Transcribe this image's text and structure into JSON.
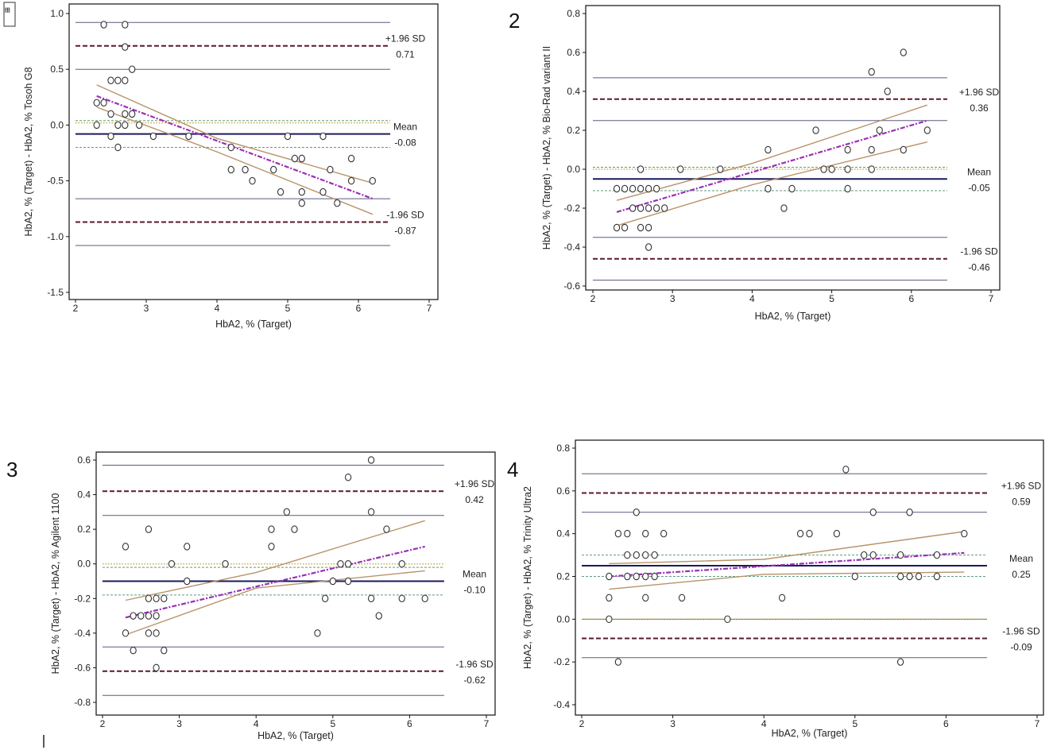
{
  "figure": {
    "corner_glyph": "⊞",
    "stray_mark": "|"
  },
  "colors": {
    "mean_line": "#1a1a5e",
    "limit_dash": "#5a1a2a",
    "ci_line": "#5a5a80",
    "regression": "#b8936a",
    "regression_fit": "#9b2fb5",
    "equality_dot": "#c9b24a",
    "mean_ci_dash": "#5f9a80",
    "marker_stroke": "#333333"
  },
  "chart_data": [
    {
      "type": "scatter",
      "panel_label": "",
      "ylabel": "HbA2, % (Target) - HbA2, % Tosoh G8",
      "xlabel": "HbA2, % (Target)",
      "xlim": [
        2,
        7
      ],
      "ylim": [
        -1.5,
        1.0
      ],
      "xticks": [
        2,
        3,
        4,
        5,
        6,
        7
      ],
      "xtick_labels": [
        "2",
        "3",
        "4",
        "5",
        "6",
        "7"
      ],
      "yticks": [
        -1.5,
        -1.0,
        -0.5,
        0.0,
        0.5,
        1.0
      ],
      "ytick_labels": [
        "-1.5",
        "-1.0",
        "-0.5",
        "0.0",
        "0.5",
        "1.0"
      ],
      "x_end": 6.45,
      "mean": -0.08,
      "upper_loa": 0.71,
      "lower_loa": -0.87,
      "upper_loa_ci": [
        0.5,
        0.92
      ],
      "lower_loa_ci": [
        -0.66,
        -1.08
      ],
      "mean_ci": [
        0.04,
        -0.2
      ],
      "equality_line": 0.02,
      "labels": {
        "upper": "+1.96 SD",
        "upper_value": "0.71",
        "mean": "Mean",
        "mean_value": "-0.08",
        "lower": "-1.96 SD",
        "lower_value": "-0.87"
      },
      "regression": {
        "x": [
          2.3,
          6.2
        ],
        "y": [
          0.26,
          -0.66
        ]
      },
      "regression_ci_upper": [
        [
          2.3,
          0.36
        ],
        [
          4.0,
          -0.12
        ],
        [
          6.2,
          -0.52
        ]
      ],
      "regression_ci_lower": [
        [
          2.3,
          0.16
        ],
        [
          4.0,
          -0.24
        ],
        [
          6.2,
          -0.8
        ]
      ],
      "points": [
        [
          2.4,
          0.9
        ],
        [
          2.7,
          0.9
        ],
        [
          2.7,
          0.7
        ],
        [
          2.8,
          0.5
        ],
        [
          2.5,
          0.4
        ],
        [
          2.6,
          0.4
        ],
        [
          2.7,
          0.4
        ],
        [
          2.3,
          0.2
        ],
        [
          2.4,
          0.2
        ],
        [
          2.5,
          0.1
        ],
        [
          2.7,
          0.1
        ],
        [
          2.8,
          0.1
        ],
        [
          2.3,
          0.0
        ],
        [
          2.6,
          0.0
        ],
        [
          2.7,
          0.0
        ],
        [
          2.9,
          0.0
        ],
        [
          2.6,
          -0.2
        ],
        [
          2.5,
          -0.1
        ],
        [
          3.1,
          -0.1
        ],
        [
          3.6,
          -0.1
        ],
        [
          4.2,
          -0.2
        ],
        [
          4.2,
          -0.4
        ],
        [
          4.4,
          -0.4
        ],
        [
          4.5,
          -0.5
        ],
        [
          4.8,
          -0.4
        ],
        [
          4.9,
          -0.6
        ],
        [
          5.0,
          -0.1
        ],
        [
          5.1,
          -0.3
        ],
        [
          5.2,
          -0.3
        ],
        [
          5.2,
          -0.6
        ],
        [
          5.2,
          -0.7
        ],
        [
          5.5,
          -0.1
        ],
        [
          5.5,
          -0.6
        ],
        [
          5.6,
          -0.4
        ],
        [
          5.7,
          -0.7
        ],
        [
          5.9,
          -0.3
        ],
        [
          5.9,
          -0.5
        ],
        [
          6.2,
          -0.5
        ]
      ]
    },
    {
      "type": "scatter",
      "panel_label": "2",
      "ylabel": "HbA2, % (Target) - HbA2, % Bio-Rad variant II",
      "xlabel": "HbA2, % (Target)",
      "xlim": [
        2,
        7
      ],
      "ylim": [
        -0.6,
        0.8
      ],
      "xticks": [
        2,
        3,
        4,
        5,
        6,
        7
      ],
      "xtick_labels": [
        "2",
        "3",
        "4",
        "5",
        "6",
        "7"
      ],
      "yticks": [
        -0.6,
        -0.4,
        -0.2,
        0.0,
        0.2,
        0.4,
        0.6,
        0.8
      ],
      "ytick_labels": [
        "-0.6",
        "-0.4",
        "-0.2",
        "0.0",
        "0.2",
        "0.4",
        "0.6",
        "0.8"
      ],
      "x_end": 6.45,
      "mean": -0.05,
      "upper_loa": 0.36,
      "lower_loa": -0.46,
      "upper_loa_ci": [
        0.25,
        0.47
      ],
      "lower_loa_ci": [
        -0.35,
        -0.57
      ],
      "mean_ci": [
        0.01,
        -0.11
      ],
      "equality_line": 0.0,
      "labels": {
        "upper": "+1.96 SD",
        "upper_value": "0.36",
        "mean": "Mean",
        "mean_value": "-0.05",
        "lower": "-1.96 SD",
        "lower_value": "-0.46"
      },
      "regression": {
        "x": [
          2.3,
          6.2
        ],
        "y": [
          -0.22,
          0.25
        ]
      },
      "regression_ci_upper": [
        [
          2.3,
          -0.16
        ],
        [
          4.0,
          0.03
        ],
        [
          6.2,
          0.33
        ]
      ],
      "regression_ci_lower": [
        [
          2.3,
          -0.29
        ],
        [
          4.0,
          -0.08
        ],
        [
          6.2,
          0.14
        ]
      ],
      "points": [
        [
          2.3,
          -0.3
        ],
        [
          2.4,
          -0.3
        ],
        [
          2.3,
          -0.1
        ],
        [
          2.4,
          -0.1
        ],
        [
          2.5,
          -0.1
        ],
        [
          2.6,
          -0.1
        ],
        [
          2.7,
          -0.1
        ],
        [
          2.8,
          -0.1
        ],
        [
          2.6,
          0.0
        ],
        [
          2.5,
          -0.2
        ],
        [
          2.6,
          -0.2
        ],
        [
          2.7,
          -0.2
        ],
        [
          2.8,
          -0.2
        ],
        [
          2.9,
          -0.2
        ],
        [
          2.6,
          -0.3
        ],
        [
          2.7,
          -0.3
        ],
        [
          2.7,
          -0.4
        ],
        [
          3.1,
          0.0
        ],
        [
          3.6,
          0.0
        ],
        [
          4.2,
          0.1
        ],
        [
          4.2,
          -0.1
        ],
        [
          4.4,
          -0.2
        ],
        [
          4.5,
          -0.1
        ],
        [
          4.8,
          0.2
        ],
        [
          4.9,
          0.0
        ],
        [
          5.0,
          0.0
        ],
        [
          5.2,
          0.1
        ],
        [
          5.2,
          0.0
        ],
        [
          5.2,
          -0.1
        ],
        [
          5.5,
          0.5
        ],
        [
          5.5,
          0.1
        ],
        [
          5.5,
          0.0
        ],
        [
          5.6,
          0.2
        ],
        [
          5.7,
          0.4
        ],
        [
          5.9,
          0.6
        ],
        [
          5.9,
          0.1
        ],
        [
          6.2,
          0.2
        ]
      ]
    },
    {
      "type": "scatter",
      "panel_label": "3",
      "ylabel": "HbA2, % (Target) - HbA2, % Agilent 1100",
      "xlabel": "HbA2, % (Target)",
      "xlim": [
        2,
        7
      ],
      "ylim": [
        -0.8,
        0.6
      ],
      "xticks": [
        2,
        3,
        4,
        5,
        6,
        7
      ],
      "xtick_labels": [
        "2",
        "3",
        "4",
        "5",
        "6",
        "7"
      ],
      "yticks": [
        -0.8,
        -0.6,
        -0.4,
        -0.2,
        0.0,
        0.2,
        0.4,
        0.6
      ],
      "ytick_labels": [
        "-0.8",
        "-0.6",
        "-0.4",
        "-0.2",
        "0.0",
        "0.2",
        "0.4",
        "0.6"
      ],
      "x_end": 6.45,
      "mean": -0.1,
      "upper_loa": 0.42,
      "lower_loa": -0.62,
      "upper_loa_ci": [
        0.28,
        0.57
      ],
      "lower_loa_ci": [
        -0.48,
        -0.76
      ],
      "mean_ci": [
        -0.02,
        -0.18
      ],
      "equality_line": 0.0,
      "labels": {
        "upper": "+1.96 SD",
        "upper_value": "0.42",
        "mean": "Mean",
        "mean_value": "-0.10",
        "lower": "-1.96 SD",
        "lower_value": "-0.62"
      },
      "regression": {
        "x": [
          2.3,
          6.2
        ],
        "y": [
          -0.31,
          0.1
        ]
      },
      "regression_ci_upper": [
        [
          2.3,
          -0.21
        ],
        [
          4.0,
          -0.05
        ],
        [
          6.2,
          0.25
        ]
      ],
      "regression_ci_lower": [
        [
          2.3,
          -0.41
        ],
        [
          4.0,
          -0.14
        ],
        [
          6.2,
          -0.04
        ]
      ],
      "points": [
        [
          2.3,
          0.1
        ],
        [
          2.3,
          -0.4
        ],
        [
          2.4,
          -0.5
        ],
        [
          2.4,
          -0.3
        ],
        [
          2.5,
          -0.3
        ],
        [
          2.6,
          -0.3
        ],
        [
          2.6,
          0.2
        ],
        [
          2.6,
          -0.2
        ],
        [
          2.6,
          -0.4
        ],
        [
          2.7,
          -0.2
        ],
        [
          2.7,
          -0.3
        ],
        [
          2.7,
          -0.4
        ],
        [
          2.7,
          -0.6
        ],
        [
          2.8,
          -0.2
        ],
        [
          2.8,
          -0.5
        ],
        [
          2.9,
          0.0
        ],
        [
          3.1,
          0.1
        ],
        [
          3.1,
          -0.1
        ],
        [
          3.6,
          0.0
        ],
        [
          4.2,
          0.2
        ],
        [
          4.2,
          0.1
        ],
        [
          4.4,
          0.3
        ],
        [
          4.5,
          0.2
        ],
        [
          4.8,
          -0.4
        ],
        [
          4.9,
          -0.2
        ],
        [
          5.0,
          -0.1
        ],
        [
          5.1,
          0.0
        ],
        [
          5.2,
          0.5
        ],
        [
          5.2,
          0.0
        ],
        [
          5.2,
          -0.1
        ],
        [
          5.5,
          0.6
        ],
        [
          5.5,
          0.3
        ],
        [
          5.5,
          -0.2
        ],
        [
          5.6,
          -0.3
        ],
        [
          5.7,
          0.2
        ],
        [
          5.9,
          0.0
        ],
        [
          5.9,
          -0.2
        ],
        [
          6.2,
          -0.2
        ]
      ]
    },
    {
      "type": "scatter",
      "panel_label": "4",
      "ylabel": "HbA2, % (Target) - HbA2, % Trinity Ultra2",
      "xlabel": "HbA2, % (Target)",
      "xlim": [
        2,
        7
      ],
      "ylim": [
        -0.4,
        0.8
      ],
      "xticks": [
        2,
        3,
        4,
        5,
        6,
        7
      ],
      "xtick_labels": [
        "2",
        "3",
        "4",
        "5",
        "6",
        "7"
      ],
      "yticks": [
        -0.4,
        -0.2,
        0.0,
        0.2,
        0.4,
        0.6,
        0.8
      ],
      "ytick_labels": [
        "-0.4",
        "-0.2",
        "0.0",
        "0.2",
        "0.4",
        "0.6",
        "0.8"
      ],
      "x_end": 6.45,
      "mean": 0.25,
      "upper_loa": 0.59,
      "lower_loa": -0.09,
      "upper_loa_ci": [
        0.5,
        0.68
      ],
      "lower_loa_ci": [
        0.0,
        -0.18
      ],
      "mean_ci": [
        0.3,
        0.2
      ],
      "equality_line": 0.0,
      "labels": {
        "upper": "+1.96 SD",
        "upper_value": "0.59",
        "mean": "Mean",
        "mean_value": "0.25",
        "lower": "-1.96 SD",
        "lower_value": "-0.09"
      },
      "regression": {
        "x": [
          2.3,
          6.2
        ],
        "y": [
          0.2,
          0.31
        ]
      },
      "regression_ci_upper": [
        [
          2.3,
          0.26
        ],
        [
          4.0,
          0.28
        ],
        [
          6.2,
          0.41
        ]
      ],
      "regression_ci_lower": [
        [
          2.3,
          0.14
        ],
        [
          4.0,
          0.21
        ],
        [
          6.2,
          0.22
        ]
      ],
      "points": [
        [
          2.3,
          0.1
        ],
        [
          2.3,
          0.0
        ],
        [
          2.3,
          0.2
        ],
        [
          2.4,
          0.4
        ],
        [
          2.4,
          -0.2
        ],
        [
          2.5,
          0.4
        ],
        [
          2.5,
          0.3
        ],
        [
          2.5,
          0.2
        ],
        [
          2.6,
          0.5
        ],
        [
          2.6,
          0.3
        ],
        [
          2.6,
          0.2
        ],
        [
          2.7,
          0.4
        ],
        [
          2.7,
          0.3
        ],
        [
          2.7,
          0.2
        ],
        [
          2.7,
          0.1
        ],
        [
          2.8,
          0.3
        ],
        [
          2.8,
          0.2
        ],
        [
          2.9,
          0.4
        ],
        [
          3.1,
          0.1
        ],
        [
          3.6,
          0.0
        ],
        [
          4.2,
          0.1
        ],
        [
          4.4,
          0.4
        ],
        [
          4.5,
          0.4
        ],
        [
          4.8,
          0.4
        ],
        [
          4.9,
          0.7
        ],
        [
          5.0,
          0.2
        ],
        [
          5.1,
          0.3
        ],
        [
          5.2,
          0.5
        ],
        [
          5.2,
          0.3
        ],
        [
          5.5,
          0.3
        ],
        [
          5.5,
          0.2
        ],
        [
          5.5,
          -0.2
        ],
        [
          5.6,
          0.5
        ],
        [
          5.6,
          0.2
        ],
        [
          5.7,
          0.2
        ],
        [
          5.9,
          0.3
        ],
        [
          5.9,
          0.2
        ],
        [
          6.2,
          0.4
        ]
      ]
    }
  ]
}
